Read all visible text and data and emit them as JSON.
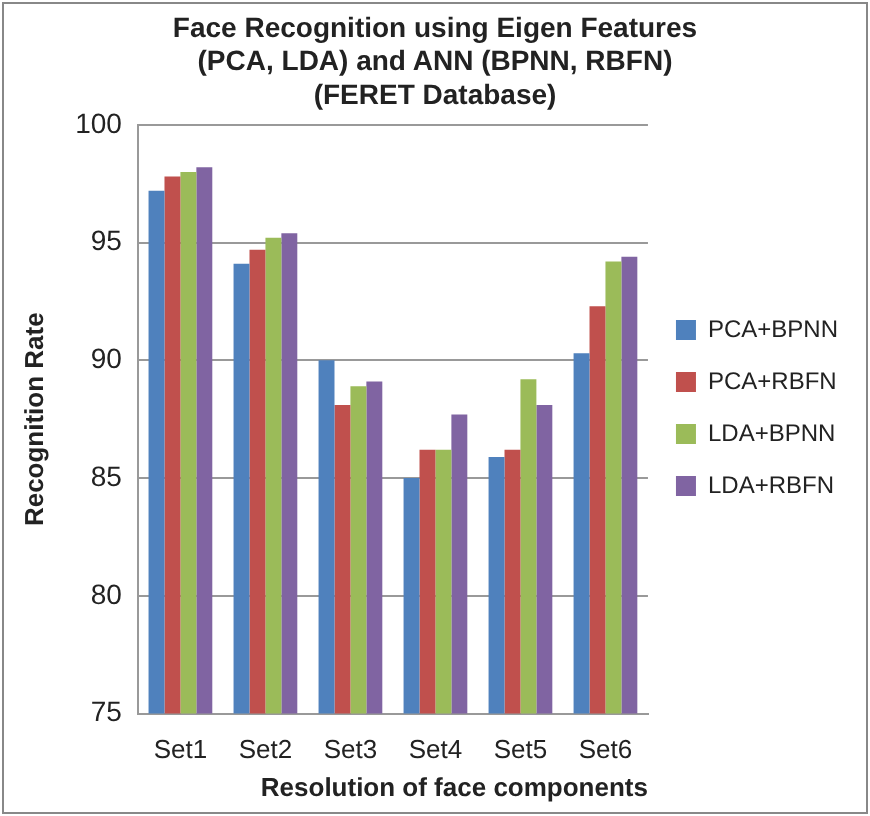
{
  "chart_data": {
    "type": "bar",
    "title": [
      "Face Recognition using Eigen Features",
      "(PCA, LDA) and ANN (BPNN, RBFN)",
      "(FERET Database)"
    ],
    "xlabel": "Resolution of face components",
    "ylabel": "Recognition Rate",
    "categories": [
      "Set1",
      "Set2",
      "Set3",
      "Set4",
      "Set5",
      "Set6"
    ],
    "series": [
      {
        "name": "PCA+BPNN",
        "color": "#4f81bd",
        "values": [
          97.2,
          94.1,
          90.0,
          85.0,
          85.9,
          90.3
        ]
      },
      {
        "name": "PCA+RBFN",
        "color": "#c0504d",
        "values": [
          97.8,
          94.7,
          88.1,
          86.2,
          86.2,
          92.3
        ]
      },
      {
        "name": "LDA+BPNN",
        "color": "#9bbb59",
        "values": [
          98.0,
          95.2,
          88.9,
          86.2,
          89.2,
          94.2
        ]
      },
      {
        "name": "LDA+RBFN",
        "color": "#8064a2",
        "values": [
          98.2,
          95.4,
          89.1,
          87.7,
          88.1,
          94.4
        ]
      }
    ],
    "ylim": [
      75,
      100
    ],
    "yticks": [
      75,
      80,
      85,
      90,
      95,
      100
    ],
    "grid": "y",
    "legend": "right"
  }
}
